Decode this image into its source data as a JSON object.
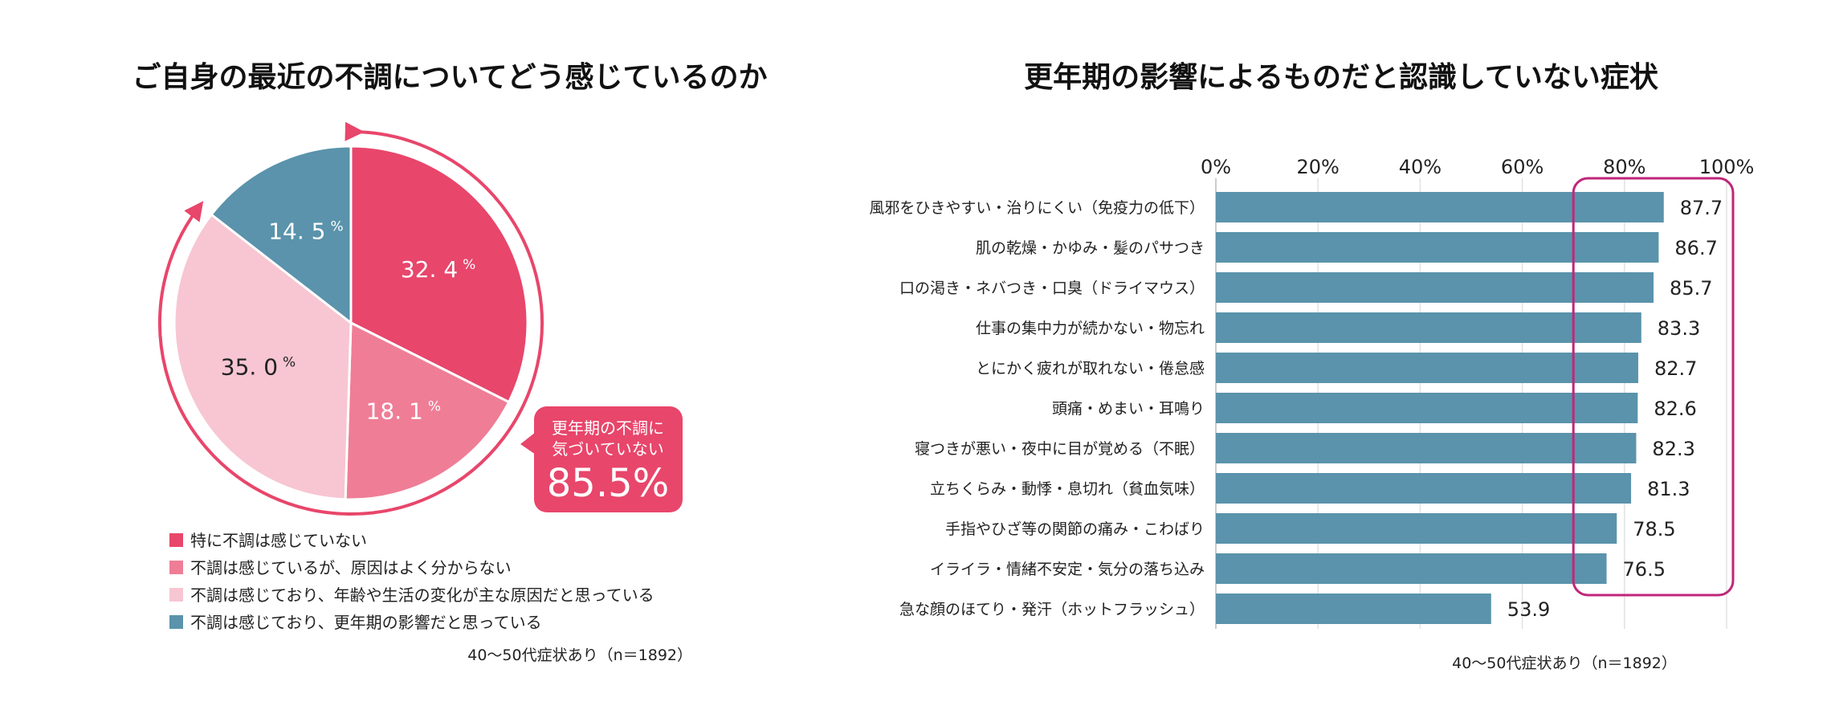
{
  "chart_data": [
    {
      "type": "pie",
      "title": "ご自身の最近の不調についてどう感じているのか",
      "categories": [
        "特に不調は感じていない",
        "不調は感じているが、原因はよく分からない",
        "不調は感じており、年齢や生活の変化が主な原因だと思っている",
        "不調は感じており、更年期の影響だと思っている"
      ],
      "values": [
        32.4,
        18.1,
        35.0,
        14.5
      ],
      "value_labels": [
        "32. 4",
        "18. 1",
        "35. 0",
        "14. 5"
      ],
      "unit": "%",
      "colors": [
        "#E8466B",
        "#EF7D96",
        "#F7C6D2",
        "#5A93AB"
      ],
      "callout": {
        "line1": "更年期の不調に",
        "line2": "気づいていない",
        "value": "85.5%"
      },
      "note": "40～50代症状あり（n＝1892）",
      "legend_position": "bottom-left"
    },
    {
      "type": "bar",
      "orientation": "horizontal",
      "title": "更年期の影響によるものだと認識していない症状",
      "categories": [
        "風邪をひきやすい・治りにくい（免疫力の低下）",
        "肌の乾燥・かゆみ・髪のパサつき",
        "口の渇き・ネバつき・口臭（ドライマウス）",
        "仕事の集中力が続かない・物忘れ",
        "とにかく疲れが取れない・倦怠感",
        "頭痛・めまい・耳鳴り",
        "寝つきが悪い・夜中に目が覚める（不眠）",
        "立ちくらみ・動悸・息切れ（貧血気味）",
        "手指やひざ等の関節の痛み・こわばり",
        "イライラ・情緒不安定・気分の落ち込み",
        "急な顔のほてり・発汗（ホットフラッシュ）"
      ],
      "values": [
        87.7,
        86.7,
        85.7,
        83.3,
        82.7,
        82.6,
        82.3,
        81.3,
        78.5,
        76.5,
        53.9
      ],
      "value_labels": [
        "87.7",
        "86.7",
        "85.7",
        "83.3",
        "82.7",
        "82.6",
        "82.3",
        "81.3",
        "78.5",
        "76.5",
        "53.9"
      ],
      "xlim": [
        0,
        100
      ],
      "tick_labels": [
        "0%",
        "20%",
        "40%",
        "60%",
        "80%",
        "100%"
      ],
      "highlight_range": [
        70,
        100
      ],
      "grid": true,
      "bar_color": "#5A93AB",
      "highlight_color": "#C0267A",
      "note": "40～50代症状あり（n＝1892）"
    }
  ]
}
